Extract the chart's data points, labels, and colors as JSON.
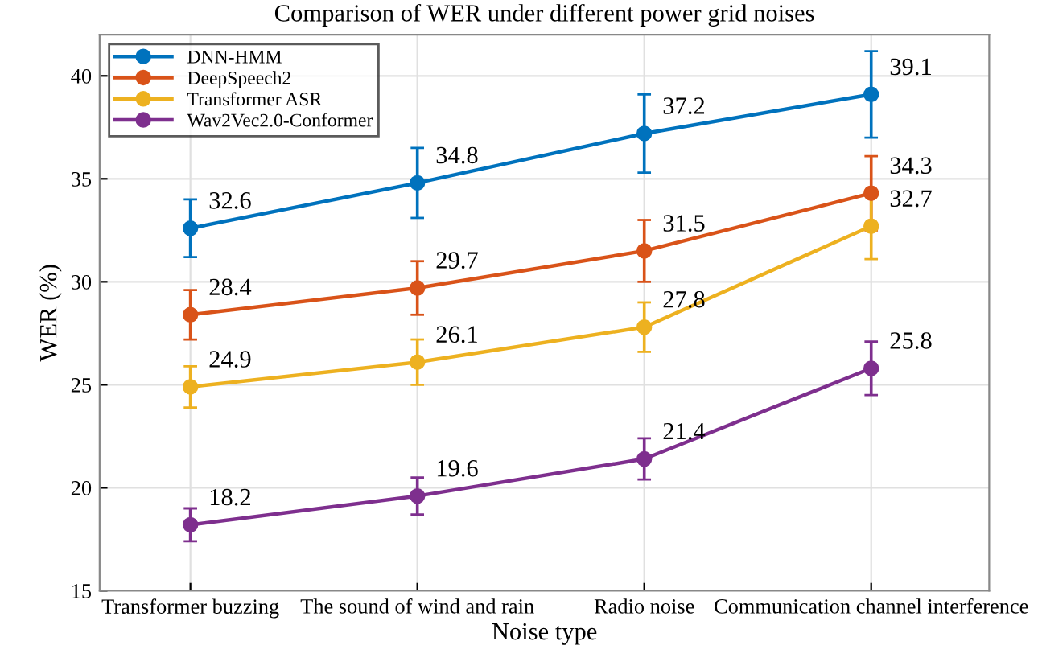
{
  "chart_data": {
    "type": "line",
    "title": "Comparison of WER under different power grid noises",
    "xlabel": "Noise type",
    "ylabel": "WER (%)",
    "categories": [
      "Transformer buzzing",
      "The sound of wind and rain",
      "Radio noise",
      "Communication channel interference"
    ],
    "series": [
      {
        "name": "DNN-HMM",
        "color": "#0072bd",
        "values": [
          32.6,
          34.8,
          37.2,
          39.1
        ],
        "errors": [
          1.4,
          1.7,
          1.9,
          2.1
        ]
      },
      {
        "name": "DeepSpeech2",
        "color": "#d95319",
        "values": [
          28.4,
          29.7,
          31.5,
          34.3
        ],
        "errors": [
          1.2,
          1.3,
          1.5,
          1.8
        ]
      },
      {
        "name": "Transformer ASR",
        "color": "#edb120",
        "values": [
          24.9,
          26.1,
          27.8,
          32.7
        ],
        "errors": [
          1.0,
          1.1,
          1.2,
          1.6
        ]
      },
      {
        "name": "Wav2Vec2.0-Conformer",
        "color": "#7e2f8e",
        "values": [
          18.2,
          19.6,
          21.4,
          25.8
        ],
        "errors": [
          0.8,
          0.9,
          1.0,
          1.3
        ]
      }
    ],
    "ylim": [
      15,
      42
    ],
    "yticks": [
      15,
      20,
      25,
      30,
      35,
      40
    ],
    "grid": true,
    "legend": "top left",
    "marker": "circle",
    "line_style": "solid",
    "data_labels": true
  }
}
